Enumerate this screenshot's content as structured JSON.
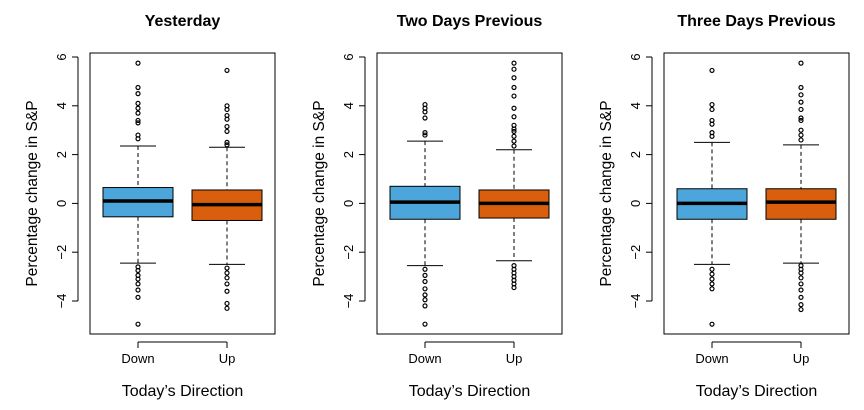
{
  "colors": {
    "down": "#4ca6db",
    "up": "#d95f0e",
    "median": "#000000",
    "frame": "#000000"
  },
  "chart_data": [
    {
      "type": "boxplot",
      "title": "Yesterday",
      "xlabel": "Today’s Direction",
      "ylabel": "Percentage change in S&P",
      "categories": [
        "Down",
        "Up"
      ],
      "ylim": [
        -5.4,
        6.2
      ],
      "yticks": [
        -4,
        -2,
        0,
        2,
        4,
        6
      ],
      "grid": false,
      "boxes": [
        {
          "name": "Down",
          "whisker_low": -2.45,
          "q1": -0.55,
          "median": 0.1,
          "q3": 0.65,
          "whisker_high": 2.35,
          "outliers": [
            5.75,
            4.75,
            4.5,
            4.1,
            3.9,
            3.7,
            3.4,
            3.3,
            2.8,
            2.65,
            -2.6,
            -2.75,
            -2.95,
            -3.1,
            -3.3,
            -3.55,
            -3.85,
            -4.95
          ]
        },
        {
          "name": "Up",
          "whisker_low": -2.5,
          "q1": -0.7,
          "median": -0.05,
          "q3": 0.55,
          "whisker_high": 2.3,
          "outliers": [
            5.45,
            4.0,
            3.85,
            3.6,
            3.45,
            3.15,
            2.95,
            2.5,
            2.4,
            -2.65,
            -2.85,
            -3.05,
            -3.3,
            -3.6,
            -4.1,
            -4.3
          ]
        }
      ]
    },
    {
      "type": "boxplot",
      "title": "Two Days Previous",
      "xlabel": "Today’s Direction",
      "ylabel": "Percentage change in S&P",
      "categories": [
        "Down",
        "Up"
      ],
      "ylim": [
        -5.4,
        6.2
      ],
      "yticks": [
        -4,
        -2,
        0,
        2,
        4,
        6
      ],
      "grid": false,
      "boxes": [
        {
          "name": "Down",
          "whisker_low": -2.55,
          "q1": -0.65,
          "median": 0.05,
          "q3": 0.7,
          "whisker_high": 2.55,
          "outliers": [
            4.05,
            3.9,
            3.75,
            3.5,
            2.9,
            2.8,
            -2.7,
            -2.95,
            -3.2,
            -3.5,
            -3.75,
            -3.95,
            -4.2,
            -4.95
          ]
        },
        {
          "name": "Up",
          "whisker_low": -2.35,
          "q1": -0.6,
          "median": 0.0,
          "q3": 0.55,
          "whisker_high": 2.2,
          "outliers": [
            5.75,
            5.5,
            5.15,
            4.75,
            4.4,
            3.9,
            3.55,
            3.2,
            3.05,
            2.95,
            2.75,
            2.55,
            2.35,
            -2.55,
            -2.7,
            -2.85,
            -3.0,
            -3.15,
            -3.3,
            -3.45
          ]
        }
      ]
    },
    {
      "type": "boxplot",
      "title": "Three Days Previous",
      "xlabel": "Today’s Direction",
      "ylabel": "Percentage change in S&P",
      "categories": [
        "Down",
        "Up"
      ],
      "ylim": [
        -5.4,
        6.2
      ],
      "yticks": [
        -4,
        -2,
        0,
        2,
        4,
        6
      ],
      "grid": false,
      "boxes": [
        {
          "name": "Down",
          "whisker_low": -2.5,
          "q1": -0.65,
          "median": 0.0,
          "q3": 0.6,
          "whisker_high": 2.5,
          "outliers": [
            5.45,
            4.05,
            3.85,
            3.4,
            3.25,
            2.9,
            2.75,
            -2.7,
            -2.9,
            -3.1,
            -3.3,
            -3.5,
            -4.95
          ]
        },
        {
          "name": "Up",
          "whisker_low": -2.45,
          "q1": -0.65,
          "median": 0.05,
          "q3": 0.6,
          "whisker_high": 2.4,
          "outliers": [
            5.75,
            4.75,
            4.45,
            4.15,
            3.85,
            3.5,
            3.4,
            3.0,
            2.8,
            2.6,
            -2.55,
            -2.7,
            -2.85,
            -3.05,
            -3.3,
            -3.55,
            -3.85,
            -4.15,
            -4.35
          ]
        }
      ]
    }
  ]
}
